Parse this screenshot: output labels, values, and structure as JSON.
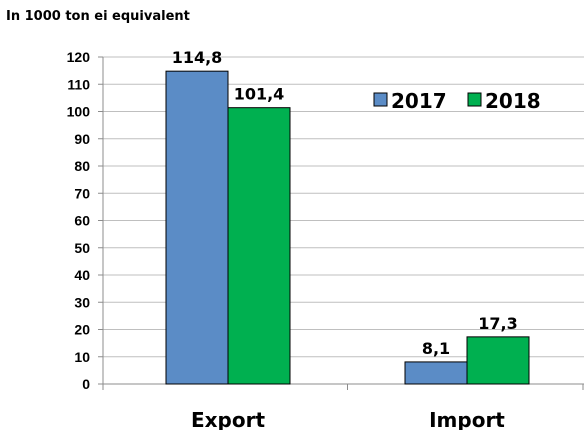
{
  "chart_data": {
    "type": "bar",
    "unit_label": "In 1000 ton ei equivalent",
    "categories": [
      "Export",
      "Import"
    ],
    "series": [
      {
        "name": "2017",
        "values": [
          114.8,
          8.1
        ],
        "labels": [
          "114,8",
          "8,1"
        ],
        "color": "#5b8cc6"
      },
      {
        "name": "2018",
        "values": [
          101.4,
          17.3
        ],
        "labels": [
          "101,4",
          "17,3"
        ],
        "color": "#00b050"
      }
    ],
    "ylim": [
      0,
      120
    ],
    "yticks": [
      0,
      10,
      20,
      30,
      40,
      50,
      60,
      70,
      80,
      90,
      100,
      110,
      120
    ],
    "grid": true,
    "legend_position": "top-right"
  }
}
